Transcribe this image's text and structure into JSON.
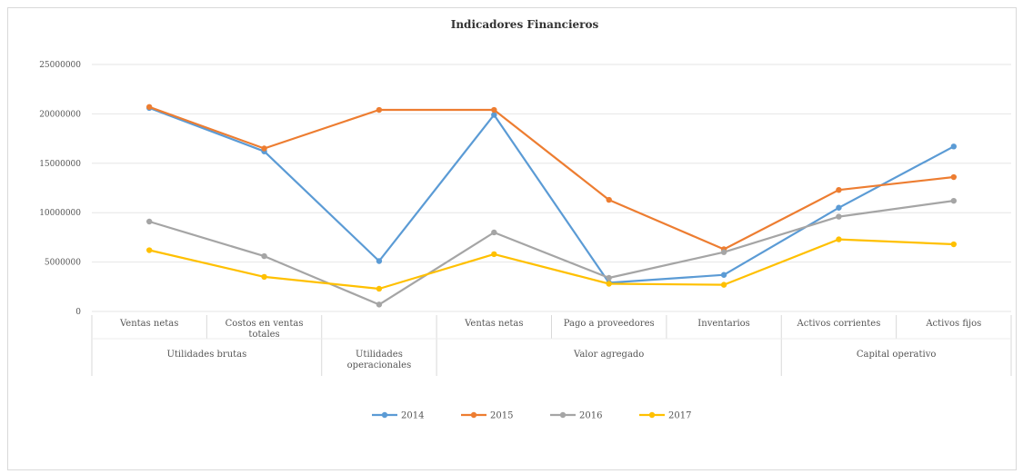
{
  "chart_data": {
    "type": "line",
    "title": "Indicadores Financieros",
    "ylim": [
      0,
      25000000
    ],
    "yticks": [
      "0",
      "5000000",
      "10000000",
      "15000000",
      "20000000",
      "25000000"
    ],
    "ytick_values": [
      0,
      5000000,
      10000000,
      15000000,
      20000000,
      25000000
    ],
    "categories": [
      [
        "Ventas netas"
      ],
      [
        "Costos en ventas",
        "totales"
      ],
      [
        ""
      ],
      [
        "Ventas netas"
      ],
      [
        "Pago a proveedores"
      ],
      [
        "Inventarios"
      ],
      [
        "Activos corrientes"
      ],
      [
        "Activos fijos"
      ]
    ],
    "groups": [
      {
        "label": [
          "Utilidades brutas"
        ],
        "span": [
          0,
          1
        ]
      },
      {
        "label": [
          "Utilidades",
          "operacionales"
        ],
        "span": [
          2,
          2
        ]
      },
      {
        "label": [
          "Valor agregado"
        ],
        "span": [
          3,
          5
        ]
      },
      {
        "label": [
          "Capital operativo"
        ],
        "span": [
          6,
          7
        ]
      }
    ],
    "grid": true,
    "legend_position": "bottom",
    "series": [
      {
        "name": "2014",
        "color": "#5b9bd5",
        "values": [
          20600000,
          16200000,
          5100000,
          19900000,
          2900000,
          3700000,
          10500000,
          16700000
        ]
      },
      {
        "name": "2015",
        "color": "#ed7d31",
        "values": [
          20700000,
          16500000,
          20400000,
          20400000,
          11300000,
          6300000,
          12300000,
          13600000
        ]
      },
      {
        "name": "2016",
        "color": "#a5a5a5",
        "values": [
          9100000,
          5600000,
          700000,
          8000000,
          3400000,
          6000000,
          9600000,
          11200000
        ]
      },
      {
        "name": "2017",
        "color": "#ffc000",
        "values": [
          6200000,
          3500000,
          2300000,
          5800000,
          2800000,
          2700000,
          7300000,
          6800000
        ]
      }
    ]
  }
}
